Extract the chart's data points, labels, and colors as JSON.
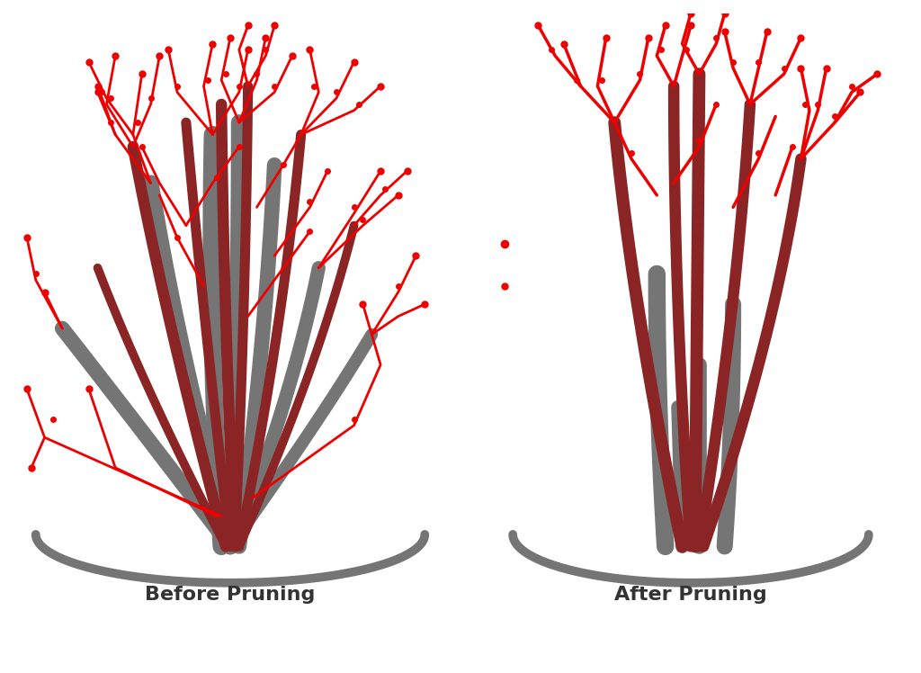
{
  "background_color": "#ffffff",
  "gray_color": "#757575",
  "dark_red_color": "#8B2525",
  "red_color": "#EE0000",
  "text_color": "#333333",
  "title_before": "Before Pruning",
  "title_after": "After Pruning",
  "title_fontsize": 16,
  "figsize": [
    10.24,
    7.48
  ],
  "dpi": 100
}
